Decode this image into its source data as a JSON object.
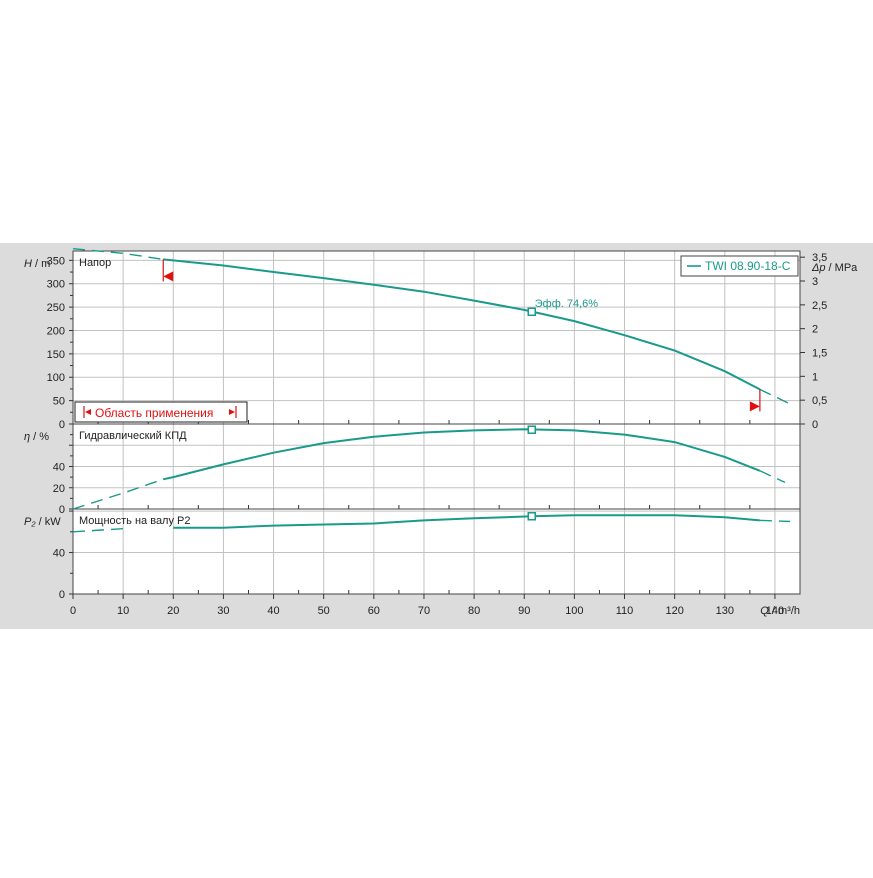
{
  "colors": {
    "background": "#dcdcdc",
    "plot_area": "#ffffff",
    "grid": "#c2c2c2",
    "curve": "#1a9a8a",
    "range_marker": "#e01010"
  },
  "chart_data": {
    "type": "line",
    "legend": {
      "label": "TWI 08.90-18-C",
      "position": "top-right"
    },
    "x_axis": {
      "label_symbol": "Q",
      "label_unit": " / m³/h",
      "range": [
        0,
        145
      ],
      "ticks": [
        0,
        10,
        20,
        30,
        40,
        50,
        60,
        70,
        80,
        90,
        100,
        110,
        120,
        130,
        140
      ],
      "tick_labels": [
        "0",
        "10",
        "20",
        "30",
        "40",
        "50",
        "60",
        "70",
        "80",
        "90",
        "100",
        "110",
        "120",
        "130",
        "140"
      ]
    },
    "duty_point": {
      "x": 91.5,
      "label": "Эфф.  74,6%"
    },
    "operating_range": {
      "x_min": 18,
      "x_max": 137,
      "label": "Область применения"
    },
    "panels": [
      {
        "id": "head",
        "title": "Напор",
        "ylabel_symbol": "H",
        "ylabel_unit": " / m",
        "ylim": [
          0,
          370
        ],
        "yticks": [
          0,
          50,
          100,
          150,
          200,
          250,
          300,
          350
        ],
        "ytick_labels": [
          "0",
          "50",
          "100",
          "150",
          "200",
          "250",
          "300",
          "350"
        ],
        "right_axis": {
          "label_symbol": "Δp",
          "label_unit": " / MPa",
          "scale": 0.00981,
          "ticks": [
            0,
            0.5,
            1,
            1.5,
            2,
            2.5,
            3,
            3.5
          ],
          "tick_labels": [
            "0",
            "0,5",
            "1",
            "1,5",
            "2",
            "2,5",
            "3",
            "3,5"
          ]
        },
        "curve": [
          [
            0,
            375
          ],
          [
            10,
            365
          ],
          [
            18,
            352
          ],
          [
            30,
            339
          ],
          [
            40,
            325
          ],
          [
            50,
            312
          ],
          [
            60,
            298
          ],
          [
            70,
            283
          ],
          [
            80,
            264
          ],
          [
            90,
            244
          ],
          [
            100,
            220
          ],
          [
            110,
            190
          ],
          [
            120,
            157
          ],
          [
            130,
            113
          ],
          [
            137,
            74
          ],
          [
            143,
            43
          ]
        ],
        "duty_y": 240
      },
      {
        "id": "efficiency",
        "title": "Гидравлический КПД",
        "ylabel_symbol": "η",
        "ylabel_unit": " / %",
        "ylim": [
          0,
          80
        ],
        "yticks": [
          0,
          20,
          40,
          60
        ],
        "ytick_labels": [
          "0",
          "20",
          "40",
          ""
        ],
        "curve": [
          [
            0,
            0
          ],
          [
            10,
            15
          ],
          [
            18,
            28
          ],
          [
            20,
            30
          ],
          [
            30,
            42
          ],
          [
            40,
            53
          ],
          [
            50,
            62
          ],
          [
            60,
            68
          ],
          [
            70,
            72
          ],
          [
            80,
            74
          ],
          [
            90,
            75
          ],
          [
            100,
            74
          ],
          [
            110,
            70
          ],
          [
            120,
            63
          ],
          [
            130,
            49
          ],
          [
            137,
            36
          ],
          [
            142,
            25
          ]
        ],
        "duty_y": 74.6
      },
      {
        "id": "power",
        "title": "Мощность  на валу P2",
        "ylabel_symbol": "P₂",
        "ylabel_unit": " / kW",
        "ylim": [
          0,
          82
        ],
        "yticks": [
          0,
          40,
          80
        ],
        "ytick_labels": [
          "0",
          "40",
          ""
        ],
        "curve": [
          [
            0,
            60
          ],
          [
            10,
            63
          ],
          [
            20,
            64
          ],
          [
            30,
            64
          ],
          [
            40,
            66
          ],
          [
            50,
            67
          ],
          [
            60,
            68
          ],
          [
            70,
            71
          ],
          [
            80,
            73
          ],
          [
            91.5,
            75
          ],
          [
            100,
            76
          ],
          [
            110,
            76
          ],
          [
            120,
            76
          ],
          [
            130,
            74
          ],
          [
            137,
            71
          ],
          [
            143,
            70
          ]
        ],
        "duty_y": 75
      }
    ]
  }
}
